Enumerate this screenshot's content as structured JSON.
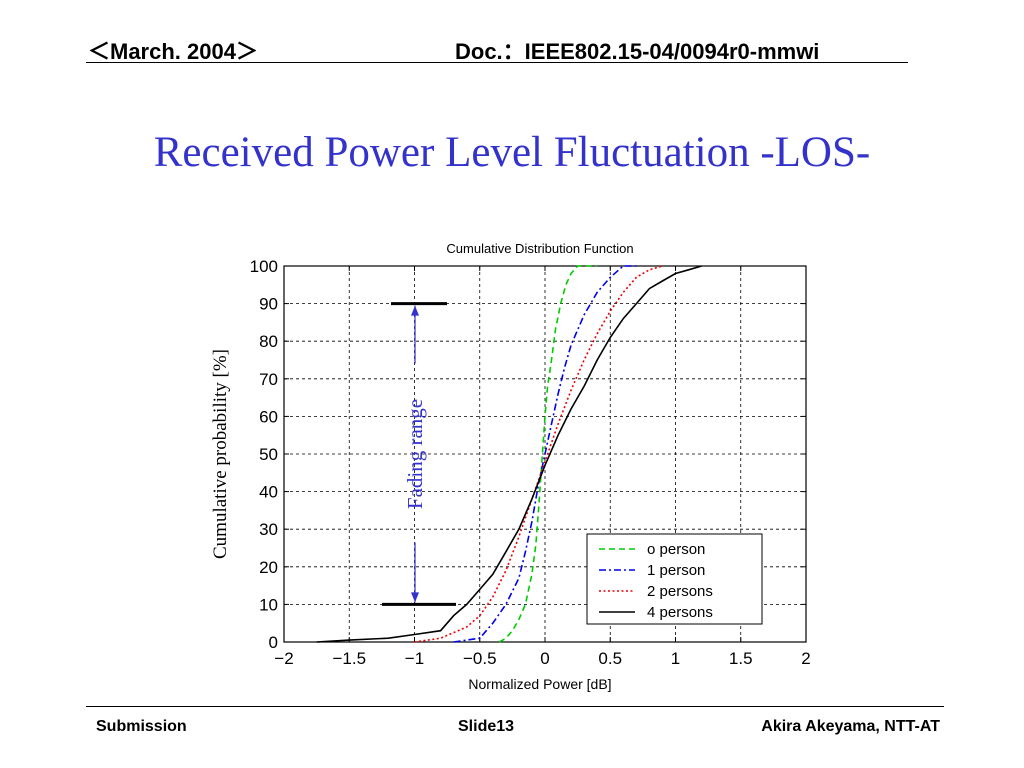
{
  "header": {
    "left": "＜March. 2004＞",
    "right": "Doc.：IEEE802.15-04/0094r0-mmwi"
  },
  "slide": {
    "title": "Received Power Level Fluctuation -LOS-"
  },
  "footer": {
    "left": "Submission",
    "center": "Slide13",
    "right": "Akira Akeyama, NTT-AT"
  },
  "chart_data": {
    "type": "line",
    "title": "Cumulative Distribution Function",
    "xlabel": "Normalized Power [dB]",
    "ylabel": "Cumulative probability [%]",
    "xlim": [
      -2,
      2
    ],
    "ylim": [
      0,
      100
    ],
    "xticks": [
      "−2",
      "−1.5",
      "−1",
      "−0.5",
      "0",
      "0.5",
      "1",
      "1.5",
      "2"
    ],
    "yticks": [
      "0",
      "10",
      "20",
      "30",
      "40",
      "50",
      "60",
      "70",
      "80",
      "90",
      "100"
    ],
    "grid": true,
    "legend_position": "bottom-right",
    "annotation": {
      "label": "Fading range",
      "from": 10,
      "to": 90,
      "color": "#3333cc"
    },
    "series": [
      {
        "name": "o person",
        "color": "#00cc00",
        "dash": "dashed",
        "x": [
          -0.35,
          -0.3,
          -0.25,
          -0.2,
          -0.15,
          -0.1,
          -0.07,
          -0.05,
          -0.03,
          -0.01,
          0.0,
          0.02,
          0.05,
          0.08,
          0.12,
          0.16,
          0.2,
          0.25,
          0.3,
          0.4
        ],
        "y": [
          0,
          1,
          3,
          6,
          10,
          18,
          26,
          35,
          45,
          55,
          60,
          68,
          75,
          83,
          90,
          95,
          98,
          100,
          100,
          100
        ]
      },
      {
        "name": "1 person",
        "color": "#0000ee",
        "dash": "dashdot",
        "x": [
          -0.7,
          -0.5,
          -0.45,
          -0.4,
          -0.3,
          -0.2,
          -0.15,
          -0.1,
          -0.05,
          0.0,
          0.05,
          0.1,
          0.15,
          0.2,
          0.3,
          0.4,
          0.5,
          0.6,
          0.7
        ],
        "y": [
          0,
          1,
          3,
          5,
          10,
          17,
          24,
          32,
          42,
          50,
          58,
          66,
          73,
          79,
          87,
          93,
          97,
          100,
          100
        ]
      },
      {
        "name": "2 persons",
        "color": "#ee0000",
        "dash": "dotted",
        "x": [
          -1.0,
          -0.8,
          -0.6,
          -0.5,
          -0.4,
          -0.3,
          -0.2,
          -0.1,
          0.0,
          0.1,
          0.2,
          0.3,
          0.4,
          0.5,
          0.6,
          0.7,
          0.8,
          0.9
        ],
        "y": [
          0,
          1,
          4,
          7,
          12,
          19,
          28,
          38,
          48,
          58,
          67,
          75,
          82,
          88,
          93,
          97,
          99,
          100
        ]
      },
      {
        "name": "4 persons",
        "color": "#000000",
        "dash": "solid",
        "x": [
          -1.75,
          -1.5,
          -1.2,
          -1.0,
          -0.8,
          -0.75,
          -0.7,
          -0.6,
          -0.5,
          -0.4,
          -0.3,
          -0.2,
          -0.1,
          0.0,
          0.1,
          0.2,
          0.3,
          0.4,
          0.5,
          0.6,
          0.7,
          0.8,
          0.9,
          1.0,
          1.1,
          1.2
        ],
        "y": [
          0,
          0.5,
          1,
          2,
          3,
          5,
          7,
          10,
          14,
          18,
          24,
          30,
          38,
          47,
          55,
          62,
          68,
          75,
          81,
          86,
          90,
          94,
          96,
          98,
          99,
          100
        ]
      }
    ]
  }
}
